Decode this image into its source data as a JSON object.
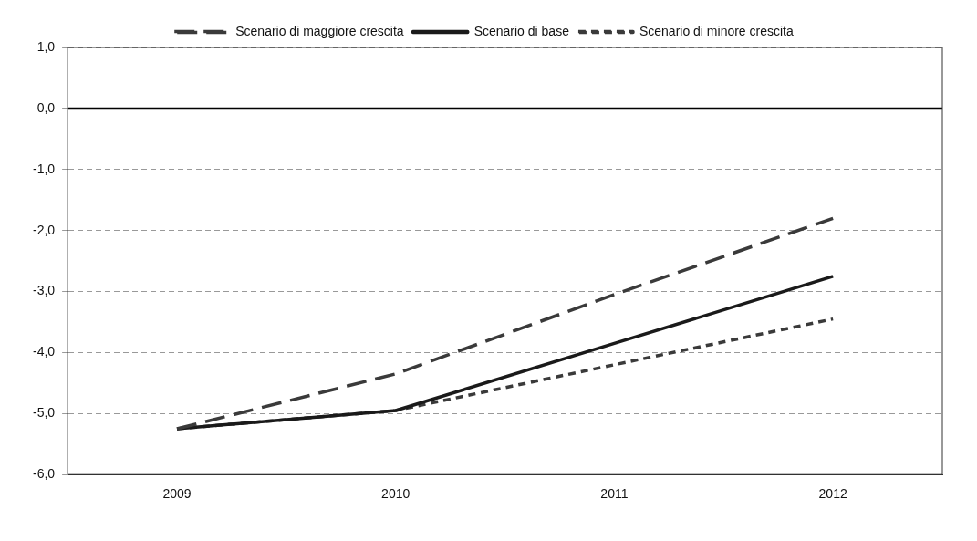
{
  "chart_data": {
    "type": "line",
    "categories": [
      "2009",
      "2010",
      "2011",
      "2012"
    ],
    "series": [
      {
        "name": "Scenario di maggiore crescita",
        "color": "#3a3a3a",
        "line_style": "dashed",
        "values": [
          -5.25,
          -4.35,
          -3.05,
          -1.8
        ]
      },
      {
        "name": "Scenario di base",
        "color": "#1a1a1a",
        "line_style": "solid",
        "values": [
          -5.25,
          -4.95,
          -3.85,
          -2.75
        ]
      },
      {
        "name": "Scenario di minore crescita",
        "color": "#3a3a3a",
        "line_style": "dotted",
        "values": [
          -5.25,
          -4.95,
          -4.2,
          -3.45
        ]
      }
    ],
    "ylim": [
      -6,
      1
    ],
    "yticks": [
      {
        "value": 1,
        "label": "1,0"
      },
      {
        "value": 0,
        "label": "0,0"
      },
      {
        "value": -1,
        "label": "-1,0"
      },
      {
        "value": -2,
        "label": "-2,0"
      },
      {
        "value": -3,
        "label": "-3,0"
      },
      {
        "value": -4,
        "label": "-4,0"
      },
      {
        "value": -5,
        "label": "-5,0"
      },
      {
        "value": -6,
        "label": "-6,0"
      }
    ],
    "ref_lines": [
      {
        "axis": "y",
        "value": 0,
        "color": "#000000"
      }
    ],
    "grid": "y",
    "legend": "top",
    "marker": "none"
  }
}
